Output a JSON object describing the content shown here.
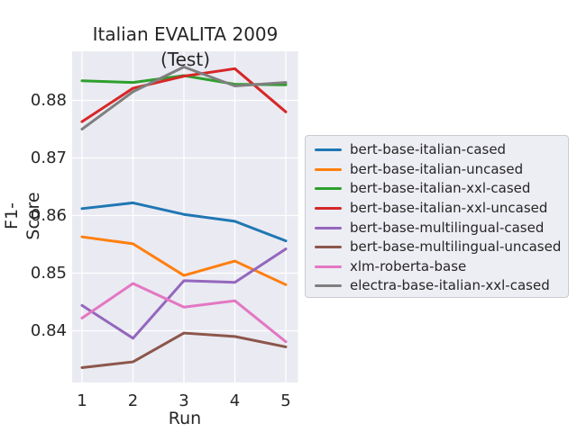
{
  "chart_data": {
    "type": "line",
    "title": "Italian EVALITA 2009 (Test)",
    "xlabel": "Run",
    "ylabel": "F1-Score",
    "x": [
      1,
      2,
      3,
      4,
      5
    ],
    "x_tick_labels": [
      "1",
      "2",
      "3",
      "4",
      "5"
    ],
    "y_ticks": [
      0.88,
      0.87,
      0.86,
      0.85,
      0.84
    ],
    "y_tick_labels": [
      "0.88",
      "0.87",
      "0.86",
      "0.85",
      "0.84"
    ],
    "ylim": [
      0.8309,
      0.8884
    ],
    "grid": true,
    "legend_position": "right-outside",
    "series": [
      {
        "name": "bert-base-italian-cased",
        "color": "#1f77b4",
        "values": [
          0.8612,
          0.8622,
          0.8602,
          0.859,
          0.8556
        ]
      },
      {
        "name": "bert-base-italian-uncased",
        "color": "#ff7f0e",
        "values": [
          0.8563,
          0.8551,
          0.8496,
          0.8521,
          0.848
        ]
      },
      {
        "name": "bert-base-italian-xxl-cased",
        "color": "#2ca02c",
        "values": [
          0.8834,
          0.8831,
          0.8843,
          0.8828,
          0.8827
        ]
      },
      {
        "name": "bert-base-italian-xxl-uncased",
        "color": "#d62728",
        "values": [
          0.8763,
          0.8821,
          0.8842,
          0.8855,
          0.878
        ]
      },
      {
        "name": "bert-base-multilingual-cased",
        "color": "#9467bd",
        "values": [
          0.8444,
          0.8387,
          0.8487,
          0.8484,
          0.8542
        ]
      },
      {
        "name": "bert-base-multilingual-uncased",
        "color": "#8c564b",
        "values": [
          0.8336,
          0.8346,
          0.8396,
          0.839,
          0.8372
        ]
      },
      {
        "name": "xlm-roberta-base",
        "color": "#e377c2",
        "values": [
          0.8422,
          0.8482,
          0.8441,
          0.8452,
          0.8381
        ]
      },
      {
        "name": "electra-base-italian-xxl-cased",
        "color": "#7f7f7f",
        "values": [
          0.875,
          0.8815,
          0.8858,
          0.8825,
          0.8831
        ]
      }
    ]
  },
  "colors": {
    "figure_bg": "#ffffff",
    "plot_bg": "#eaeaf2",
    "grid": "#ffffff",
    "text": "#262626"
  }
}
